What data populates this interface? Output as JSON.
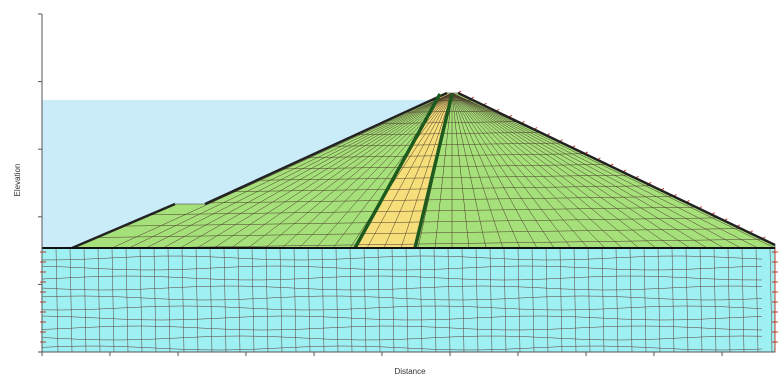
{
  "axes": {
    "y_label": "Elevation",
    "x_label": "Distance"
  }
}
